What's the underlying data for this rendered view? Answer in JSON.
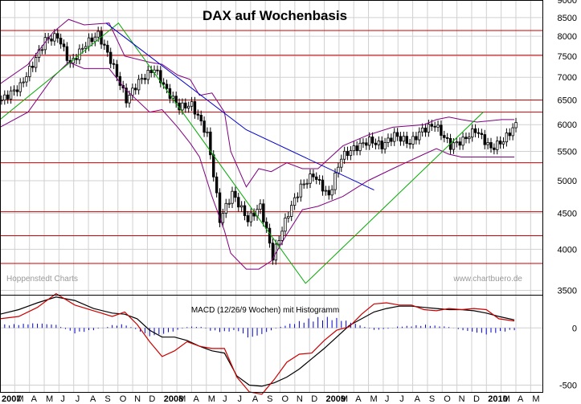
{
  "chart_data": [
    {
      "type": "candlestick",
      "title": "DAX auf Wochenbasis",
      "scale": "log",
      "ylim": [
        3450,
        9000
      ],
      "y_ticks": [
        3500,
        4000,
        4500,
        5000,
        5500,
        6000,
        6500,
        7000,
        7500,
        8000,
        8500,
        9000
      ],
      "horizontal_levels": [
        8150,
        7520,
        6500,
        6250,
        5300,
        4520,
        4180,
        3820
      ],
      "watermarks": {
        "left": "Hoppenstedt Charts",
        "right": "www.chartbuero.de"
      },
      "series": [
        {
          "name": "close",
          "color": "#000000",
          "x": [
            0,
            6,
            10,
            14,
            18,
            22,
            27,
            31,
            35,
            40,
            44,
            49,
            53,
            57,
            61,
            66,
            70,
            74,
            79,
            83,
            87,
            92,
            96,
            100,
            105,
            109,
            113,
            118,
            122,
            126,
            131,
            135,
            139,
            144,
            148,
            152,
            157,
            161,
            165
          ],
          "values": [
            6500,
            6800,
            7300,
            7900,
            8000,
            7300,
            7800,
            8050,
            7400,
            6500,
            6900,
            7200,
            6700,
            6350,
            6400,
            5800,
            4400,
            4800,
            4400,
            4600,
            3900,
            4500,
            4900,
            5100,
            4750,
            5400,
            5550,
            5700,
            5600,
            5800,
            5650,
            5900,
            6000,
            5600,
            5700,
            5900,
            5550,
            5700,
            6000
          ]
        },
        {
          "name": "upper band",
          "color": "#800080",
          "x": [
            0,
            9,
            17,
            22,
            27,
            35,
            40,
            48,
            52,
            57,
            61,
            64,
            68,
            72,
            74,
            79,
            83,
            87,
            92,
            97,
            102,
            110,
            118,
            126,
            136,
            140,
            144,
            148,
            153,
            161,
            165
          ],
          "values": [
            6850,
            7300,
            8100,
            8450,
            8300,
            8350,
            7500,
            7350,
            7300,
            7050,
            6950,
            6600,
            6650,
            6250,
            5500,
            4900,
            5200,
            5150,
            5300,
            5200,
            5200,
            5600,
            5800,
            5950,
            6000,
            6100,
            6150,
            6100,
            6050,
            6100,
            6100
          ]
        },
        {
          "name": "lower band",
          "color": "#800080",
          "x": [
            0,
            9,
            17,
            22,
            27,
            35,
            40,
            48,
            52,
            57,
            61,
            64,
            68,
            72,
            74,
            79,
            83,
            87,
            92,
            97,
            102,
            110,
            118,
            126,
            136,
            140,
            144,
            148,
            153,
            161,
            165
          ],
          "values": [
            5950,
            6250,
            7000,
            7350,
            7200,
            7200,
            6750,
            6250,
            6300,
            5950,
            5650,
            5400,
            4750,
            4250,
            3950,
            3750,
            3750,
            3850,
            4200,
            4550,
            4600,
            4750,
            5000,
            5200,
            5450,
            5550,
            5450,
            5400,
            5400,
            5400,
            5400
          ]
        },
        {
          "name": "support",
          "color": "#00aa00",
          "x": [
            0,
            38,
            98,
            155
          ],
          "values": [
            6100,
            8350,
            3580,
            6250
          ]
        },
        {
          "name": "resistance",
          "color": "#0000cc",
          "x": [
            34,
            79,
            120
          ],
          "values": [
            8350,
            5900,
            4850
          ]
        }
      ]
    },
    {
      "type": "line",
      "title": "MACD (12/26/9 Wochen) mit Histogramm",
      "ylim": [
        -560,
        290
      ],
      "y_ticks": [
        -500,
        0
      ],
      "y_tick_labels": [
        "-500",
        "0"
      ],
      "series": [
        {
          "name": "MACD",
          "color": "#000000",
          "x": [
            0,
            6,
            12,
            18,
            24,
            30,
            36,
            40,
            44,
            48,
            52,
            56,
            60,
            64,
            68,
            72,
            76,
            80,
            84,
            88,
            92,
            96,
            100,
            104,
            108,
            112,
            116,
            120,
            124,
            128,
            132,
            136,
            140,
            144,
            148,
            152,
            156,
            160,
            165
          ],
          "values": [
            120,
            160,
            220,
            270,
            240,
            170,
            130,
            120,
            80,
            -20,
            -80,
            -80,
            -110,
            -160,
            -200,
            -220,
            -420,
            -500,
            -510,
            -480,
            -430,
            -360,
            -270,
            -180,
            -80,
            20,
            80,
            140,
            170,
            190,
            190,
            180,
            170,
            160,
            160,
            150,
            130,
            100,
            70
          ]
        },
        {
          "name": "Signal",
          "color": "#cc0000",
          "x": [
            0,
            6,
            12,
            18,
            24,
            30,
            36,
            40,
            44,
            48,
            52,
            56,
            60,
            64,
            68,
            72,
            76,
            80,
            84,
            88,
            92,
            96,
            100,
            104,
            108,
            112,
            116,
            120,
            124,
            128,
            132,
            136,
            140,
            144,
            148,
            152,
            156,
            160,
            165
          ],
          "values": [
            80,
            100,
            180,
            300,
            200,
            150,
            100,
            140,
            30,
            -120,
            -250,
            -200,
            -120,
            -160,
            -180,
            -180,
            -430,
            -560,
            -580,
            -450,
            -300,
            -230,
            -220,
            -110,
            -20,
            10,
            120,
            210,
            220,
            200,
            200,
            160,
            150,
            170,
            160,
            170,
            160,
            80,
            60
          ]
        },
        {
          "name": "Histogram",
          "type": "bar",
          "color": "#0000cc",
          "x": [
            0,
            6,
            12,
            18,
            24,
            30,
            36,
            40,
            44,
            48,
            52,
            56,
            60,
            64,
            68,
            72,
            76,
            80,
            84,
            88,
            92,
            96,
            100,
            104,
            108,
            112,
            116,
            120,
            124,
            128,
            132,
            136,
            140,
            144,
            148,
            152,
            156,
            160,
            165
          ],
          "values": [
            30,
            35,
            45,
            30,
            -50,
            -20,
            25,
            35,
            -20,
            -80,
            -60,
            -30,
            10,
            15,
            -30,
            -40,
            -20,
            -100,
            -60,
            -10,
            30,
            60,
            90,
            100,
            90,
            60,
            20,
            -20,
            -10,
            15,
            20,
            30,
            20,
            10,
            -20,
            -40,
            -60,
            -40,
            -20
          ]
        }
      ]
    }
  ],
  "x_axis": {
    "labels": [
      "2007",
      "M",
      "A",
      "M",
      "J",
      "J",
      "A",
      "S",
      "O",
      "N",
      "D",
      "2008",
      "M",
      "A",
      "M",
      "J",
      "J",
      "A",
      "S",
      "O",
      "N",
      "D",
      "2009",
      "M",
      "A",
      "M",
      "J",
      "J",
      "A",
      "S",
      "O",
      "N",
      "D",
      "2010",
      "M",
      "A",
      "M"
    ],
    "bold_labels": [
      "2007",
      "2008",
      "2009",
      "2010"
    ]
  }
}
